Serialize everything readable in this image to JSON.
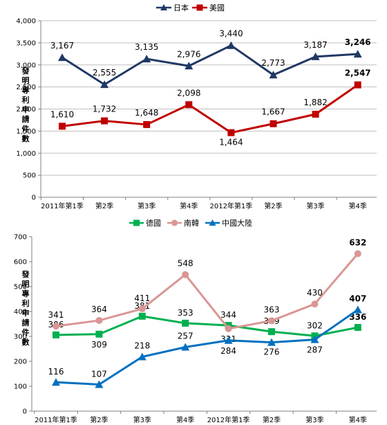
{
  "chart_data": [
    {
      "type": "line",
      "ylabel": "發明專利申請件數",
      "ylim": [
        0,
        4000
      ],
      "yticks": [
        "0",
        "500",
        "1,000",
        "1,500",
        "2,000",
        "2,500",
        "3,000",
        "3,500",
        "4,000"
      ],
      "categories": [
        "2011年第1季",
        "第2季",
        "第3季",
        "第4季",
        "2012年第1季",
        "第2季",
        "第3季",
        "第4季"
      ],
      "legend_position": "top-center",
      "grid": true,
      "series": [
        {
          "name": "日本",
          "color": "#1f3864",
          "marker": "triangle",
          "values": [
            3167,
            2555,
            3135,
            2976,
            3440,
            2773,
            3187,
            3246
          ],
          "labels": [
            "3,167",
            "2,555",
            "3,135",
            "2,976",
            "3,440",
            "2,773",
            "3,187",
            "3,246"
          ]
        },
        {
          "name": "美國",
          "color": "#c00000",
          "marker": "square",
          "values": [
            1610,
            1732,
            1648,
            2098,
            1464,
            1667,
            1882,
            2547
          ],
          "labels": [
            "1,610",
            "1,732",
            "1,648",
            "2,098",
            "1,464",
            "1,667",
            "1,882",
            "2,547"
          ]
        }
      ]
    },
    {
      "type": "line",
      "ylabel": "發明專利申請件數",
      "ylim": [
        0,
        700
      ],
      "yticks": [
        "0",
        "100",
        "200",
        "300",
        "400",
        "500",
        "600",
        "700"
      ],
      "categories": [
        "2011年第1季",
        "第2季",
        "第3季",
        "第4季",
        "2012年第1季",
        "第2季",
        "第3季",
        "第4季"
      ],
      "legend_position": "top-center",
      "grid": false,
      "series": [
        {
          "name": "德國",
          "color": "#00b050",
          "marker": "square",
          "values": [
            306,
            309,
            381,
            353,
            344,
            319,
            302,
            336
          ],
          "labels": [
            "306",
            "309",
            "381",
            "353",
            "344",
            "319",
            "302",
            "336"
          ]
        },
        {
          "name": "南韓",
          "color": "#d99694",
          "marker": "circle",
          "values": [
            341,
            364,
            411,
            548,
            331,
            363,
            430,
            632
          ],
          "labels": [
            "341",
            "364",
            "411",
            "548",
            "331",
            "363",
            "430",
            "632"
          ]
        },
        {
          "name": "中國大陸",
          "color": "#0070c0",
          "marker": "triangle",
          "values": [
            116,
            107,
            218,
            257,
            284,
            276,
            287,
            407
          ],
          "labels": [
            "116",
            "107",
            "218",
            "257",
            "284",
            "276",
            "287",
            "407"
          ]
        }
      ]
    }
  ]
}
